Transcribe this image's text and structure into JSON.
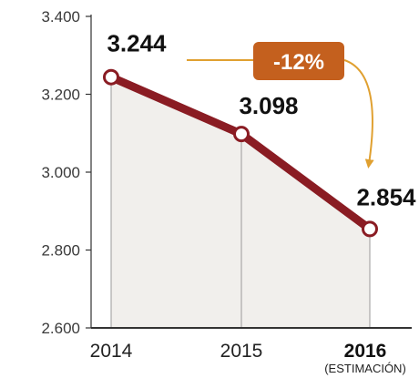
{
  "chart_data": {
    "type": "line",
    "categories": [
      "2014",
      "2015",
      "2016"
    ],
    "category_notes": [
      "",
      "",
      "(ESTIMACIÓN)"
    ],
    "values": [
      3244,
      3098,
      2854
    ],
    "value_labels": [
      "3.244",
      "3.098",
      "2.854"
    ],
    "ylim": [
      2600,
      3400
    ],
    "yticks": [
      2600,
      2800,
      3000,
      3200,
      3400
    ],
    "ytick_labels": [
      "2.600",
      "2.800",
      "3.000",
      "3.200",
      "3.400"
    ],
    "annotation": "-12%",
    "grid": false,
    "colors": {
      "line": "#8a1c23",
      "marker_fill": "#ffffff",
      "area": "#f1efec",
      "badge": "#c4601e",
      "arrow": "#e0a030",
      "axis": "#333333",
      "drop_lines": "#9a9a9a"
    }
  }
}
